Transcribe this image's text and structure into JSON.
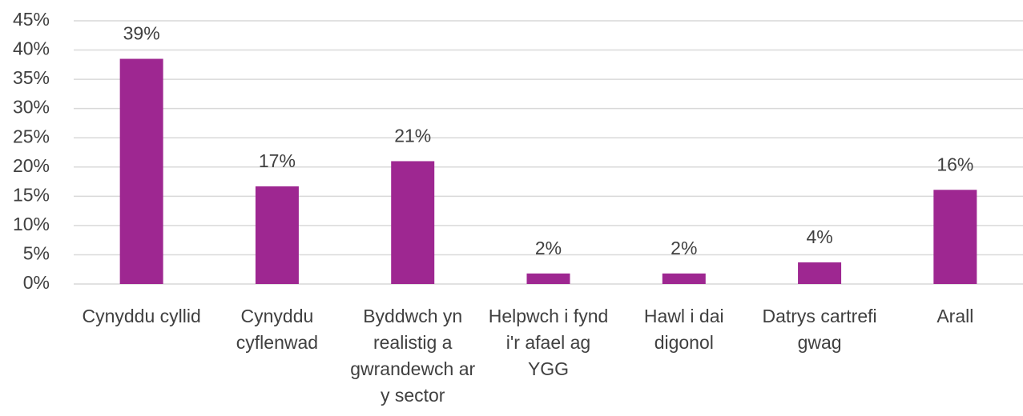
{
  "chart_data": {
    "type": "bar",
    "categories": [
      "Cynyddu cyllid",
      "Cynyddu cyflenwad",
      "Byddwch yn realistig a gwrandewch ar y sector",
      "Helpwch i fynd i'r afael ag YGG",
      "Hawl i dai digonol",
      "Datrys cartrefi gwag",
      "Arall"
    ],
    "values": [
      38.5,
      16.7,
      21,
      1.8,
      1.8,
      3.7,
      16.1
    ],
    "value_labels": [
      "39%",
      "17%",
      "21%",
      "2%",
      "2%",
      "4%",
      "16%"
    ],
    "color": "#9e2791",
    "ylim": [
      0,
      45
    ],
    "yticks": [
      {
        "value": 0,
        "label": "0%"
      },
      {
        "value": 5,
        "label": "5%"
      },
      {
        "value": 10,
        "label": "10%"
      },
      {
        "value": 15,
        "label": "15%"
      },
      {
        "value": 20,
        "label": "20%"
      },
      {
        "value": 25,
        "label": "25%"
      },
      {
        "value": 30,
        "label": "30%"
      },
      {
        "value": 35,
        "label": "35%"
      },
      {
        "value": 40,
        "label": "40%"
      },
      {
        "value": 45,
        "label": "45%"
      }
    ],
    "grid": true
  }
}
